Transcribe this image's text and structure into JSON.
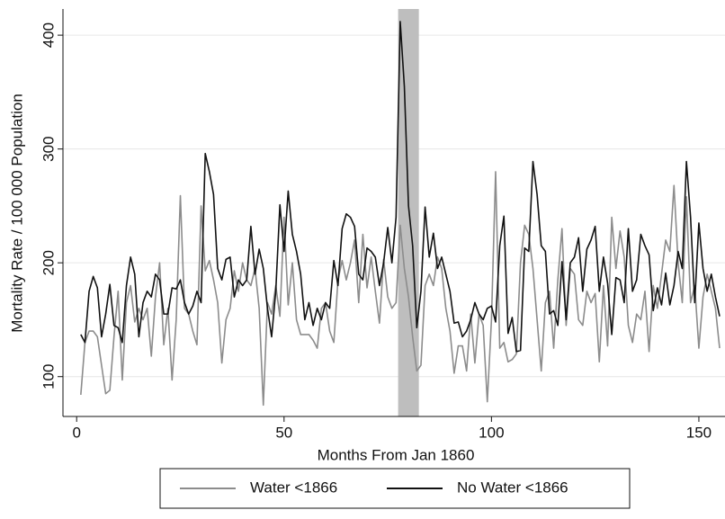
{
  "chart_data": {
    "type": "line",
    "xlabel": "Months From Jan 1860",
    "ylabel": "Mortality Rate / 100 000 Population",
    "x": [
      1,
      2,
      3,
      4,
      5,
      6,
      7,
      8,
      9,
      10,
      11,
      12,
      13,
      14,
      15,
      16,
      17,
      18,
      19,
      20,
      21,
      22,
      23,
      24,
      25,
      26,
      27,
      28,
      29,
      30,
      31,
      32,
      33,
      34,
      35,
      36,
      37,
      38,
      39,
      40,
      41,
      42,
      43,
      44,
      45,
      46,
      47,
      48,
      49,
      50,
      51,
      52,
      53,
      54,
      55,
      56,
      57,
      58,
      59,
      60,
      61,
      62,
      63,
      64,
      65,
      66,
      67,
      68,
      69,
      70,
      71,
      72,
      73,
      74,
      75,
      76,
      77,
      78,
      79,
      80,
      81,
      82,
      83,
      84,
      85,
      86,
      87,
      88,
      89,
      90,
      91,
      92,
      93,
      94,
      95,
      96,
      97,
      98,
      99,
      100,
      101,
      102,
      103,
      104,
      105,
      106,
      107,
      108,
      109,
      110,
      111,
      112,
      113,
      114,
      115,
      116,
      117,
      118,
      119,
      120,
      121,
      122,
      123,
      124,
      125,
      126,
      127,
      128,
      129,
      130,
      131,
      132,
      133,
      134,
      135,
      136,
      137,
      138,
      139,
      140,
      141,
      142,
      143,
      144,
      145,
      146,
      147,
      148,
      149,
      150,
      151,
      152,
      153,
      154,
      155
    ],
    "series": [
      {
        "name": "Water <1866",
        "color": "#8c8c8c",
        "values": [
          84,
          130,
          140,
          140,
          135,
          110,
          85,
          88,
          135,
          175,
          97,
          165,
          180,
          148,
          160,
          150,
          160,
          118,
          170,
          200,
          128,
          160,
          97,
          150,
          259,
          160,
          155,
          140,
          128,
          250,
          193,
          202,
          185,
          165,
          112,
          150,
          160,
          193,
          175,
          200,
          185,
          180,
          195,
          160,
          75,
          165,
          155,
          180,
          153,
          240,
          163,
          200,
          150,
          137,
          137,
          137,
          132,
          125,
          160,
          165,
          140,
          130,
          185,
          202,
          185,
          200,
          220,
          165,
          225,
          178,
          205,
          175,
          147,
          203,
          170,
          160,
          165,
          233,
          195,
          170,
          135,
          105,
          110,
          180,
          190,
          180,
          205,
          195,
          160,
          140,
          103,
          127,
          127,
          105,
          155,
          112,
          155,
          145,
          78,
          150,
          280,
          125,
          130,
          113,
          115,
          120,
          200,
          233,
          225,
          195,
          150,
          105,
          165,
          175,
          125,
          185,
          230,
          145,
          195,
          190,
          150,
          145,
          175,
          165,
          173,
          113,
          180,
          127,
          240,
          195,
          228,
          205,
          145,
          130,
          155,
          150,
          175,
          122,
          180,
          160,
          190,
          220,
          210,
          268,
          200,
          165,
          258,
          165,
          180,
          125,
          170,
          190,
          175,
          160,
          125
        ]
      },
      {
        "name": "No Water <1866",
        "color": "#111111",
        "values": [
          137,
          130,
          175,
          188,
          178,
          135,
          155,
          181,
          145,
          143,
          130,
          180,
          205,
          190,
          135,
          165,
          175,
          170,
          190,
          185,
          155,
          155,
          178,
          177,
          185,
          165,
          155,
          162,
          175,
          165,
          296,
          280,
          260,
          195,
          185,
          203,
          205,
          170,
          185,
          180,
          185,
          232,
          190,
          212,
          195,
          160,
          135,
          175,
          251,
          210,
          263,
          225,
          210,
          190,
          150,
          165,
          145,
          160,
          150,
          165,
          160,
          202,
          180,
          230,
          243,
          240,
          232,
          190,
          185,
          213,
          210,
          205,
          180,
          200,
          231,
          200,
          240,
          412,
          355,
          250,
          215,
          143,
          175,
          249,
          205,
          226,
          195,
          205,
          190,
          175,
          147,
          148,
          135,
          140,
          150,
          165,
          155,
          150,
          160,
          162,
          148,
          215,
          241,
          138,
          152,
          122,
          123,
          213,
          210,
          289,
          260,
          215,
          210,
          155,
          158,
          145,
          201,
          150,
          200,
          205,
          222,
          175,
          212,
          220,
          232,
          175,
          205,
          182,
          137,
          187,
          185,
          165,
          230,
          175,
          185,
          225,
          215,
          207,
          158,
          178,
          163,
          191,
          163,
          180,
          210,
          195,
          289,
          240,
          165,
          235,
          195,
          175,
          190,
          170,
          153
        ]
      }
    ],
    "shaded_region": [
      77.5,
      82.5
    ],
    "shade_color": "#bebebe",
    "xlim": [
      -3.3,
      156.3
    ],
    "xticks": [
      0,
      50,
      100,
      150
    ],
    "ylim": [
      65,
      423
    ],
    "yticks": [
      100,
      200,
      300,
      400
    ],
    "grid": true
  }
}
